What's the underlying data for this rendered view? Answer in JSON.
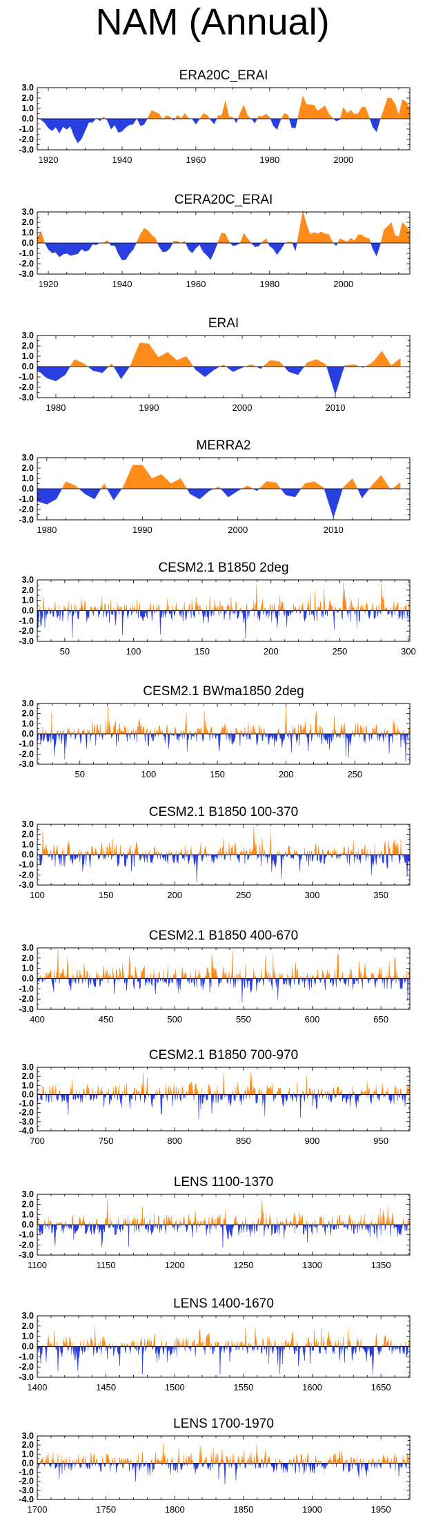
{
  "title": "NAM (Annual)",
  "colors": {
    "positive": "#ff8c1a",
    "negative": "#2a3fe0",
    "frame": "#000000"
  },
  "chart_data": [
    {
      "type": "area",
      "title": "ERA20C_ERAI",
      "xlim": [
        1917,
        2018
      ],
      "ylim": [
        -3.0,
        3.0
      ],
      "yticks": [
        "3.0",
        "2.0",
        "1.0",
        "0.0",
        "-1.0",
        "-2.0",
        "-3.0"
      ],
      "xticks": [
        1920,
        1940,
        1960,
        1980,
        2000
      ],
      "seed": 11,
      "anchors": [
        [
          1917,
          0.3
        ],
        [
          1918,
          0.2
        ],
        [
          1920,
          -0.8
        ],
        [
          1923,
          -1.2
        ],
        [
          1926,
          -0.6
        ],
        [
          1928,
          -2.2
        ],
        [
          1931,
          -0.5
        ],
        [
          1935,
          0.1
        ],
        [
          1938,
          -0.9
        ],
        [
          1940,
          -1.2
        ],
        [
          1943,
          -0.4
        ],
        [
          1946,
          -0.6
        ],
        [
          1948,
          1.4
        ],
        [
          1950,
          0.3
        ],
        [
          1954,
          -0.2
        ],
        [
          1957,
          0.4
        ],
        [
          1960,
          -0.5
        ],
        [
          1963,
          0.3
        ],
        [
          1965,
          -0.8
        ],
        [
          1968,
          1.5
        ],
        [
          1970,
          -0.3
        ],
        [
          1973,
          1.0
        ],
        [
          1976,
          -0.4
        ],
        [
          1979,
          0.2
        ],
        [
          1982,
          -0.8
        ],
        [
          1985,
          0.4
        ],
        [
          1987,
          -0.9
        ],
        [
          1989,
          2.6
        ],
        [
          1991,
          1.3
        ],
        [
          1993,
          0.7
        ],
        [
          1995,
          1.1
        ],
        [
          1997,
          -0.3
        ],
        [
          2000,
          0.6
        ],
        [
          2003,
          0.5
        ],
        [
          2006,
          0.9
        ],
        [
          2009,
          -1.6
        ],
        [
          2011,
          1.0
        ],
        [
          2013,
          1.9
        ],
        [
          2015,
          0.3
        ],
        [
          2016,
          2.1
        ],
        [
          2018,
          1.1
        ]
      ]
    },
    {
      "type": "area",
      "title": "CERA20C_ERAI",
      "xlim": [
        1917,
        2018
      ],
      "ylim": [
        -3.0,
        3.0
      ],
      "yticks": [
        "3.0",
        "2.0",
        "1.0",
        "0.0",
        "-1.0",
        "-2.0",
        "-3.0"
      ],
      "xticks": [
        1920,
        1940,
        1960,
        1980,
        2000
      ],
      "seed": 23,
      "anchors": [
        [
          1917,
          0.4
        ],
        [
          1918,
          1.2
        ],
        [
          1920,
          -0.6
        ],
        [
          1923,
          -1.2
        ],
        [
          1926,
          -0.8
        ],
        [
          1929,
          -1.0
        ],
        [
          1932,
          -0.4
        ],
        [
          1935,
          0.3
        ],
        [
          1938,
          -0.6
        ],
        [
          1940,
          -1.8
        ],
        [
          1943,
          -0.5
        ],
        [
          1946,
          1.4
        ],
        [
          1949,
          0.3
        ],
        [
          1952,
          -0.5
        ],
        [
          1955,
          0.6
        ],
        [
          1958,
          -0.8
        ],
        [
          1961,
          -0.3
        ],
        [
          1964,
          -1.6
        ],
        [
          1967,
          1.0
        ],
        [
          1970,
          -0.4
        ],
        [
          1973,
          1.0
        ],
        [
          1976,
          -0.5
        ],
        [
          1979,
          0.2
        ],
        [
          1982,
          -0.9
        ],
        [
          1985,
          0.5
        ],
        [
          1987,
          -0.6
        ],
        [
          1989,
          2.9
        ],
        [
          1991,
          1.3
        ],
        [
          1993,
          0.8
        ],
        [
          1995,
          1.0
        ],
        [
          1997,
          -0.3
        ],
        [
          2000,
          0.5
        ],
        [
          2003,
          0.6
        ],
        [
          2006,
          0.8
        ],
        [
          2009,
          -1.5
        ],
        [
          2011,
          1.2
        ],
        [
          2013,
          1.7
        ],
        [
          2015,
          0.3
        ],
        [
          2016,
          1.9
        ],
        [
          2018,
          1.0
        ]
      ]
    },
    {
      "type": "area",
      "title": "ERAI",
      "xlim": [
        1978,
        2018
      ],
      "ylim": [
        -3.0,
        3.0
      ],
      "yticks": [
        "3.0",
        "2.0",
        "1.0",
        "0.0",
        "-1.0",
        "-2.0",
        "-3.0"
      ],
      "xticks": [
        1980,
        1990,
        2000,
        2010
      ],
      "seed": 0,
      "anchors": [
        [
          1978,
          -0.3
        ],
        [
          1979,
          -1.1
        ],
        [
          1980,
          -1.4
        ],
        [
          1981,
          -0.8
        ],
        [
          1982,
          0.7
        ],
        [
          1983,
          0.3
        ],
        [
          1984,
          -0.4
        ],
        [
          1985,
          -0.6
        ],
        [
          1986,
          0.3
        ],
        [
          1987,
          -1.2
        ],
        [
          1988,
          0.1
        ],
        [
          1989,
          2.3
        ],
        [
          1990,
          2.2
        ],
        [
          1991,
          0.9
        ],
        [
          1992,
          1.4
        ],
        [
          1993,
          0.6
        ],
        [
          1994,
          1.0
        ],
        [
          1995,
          -0.3
        ],
        [
          1996,
          -1.0
        ],
        [
          1997,
          -0.3
        ],
        [
          1998,
          0.2
        ],
        [
          1999,
          -0.5
        ],
        [
          2000,
          -0.1
        ],
        [
          2001,
          0.2
        ],
        [
          2002,
          -0.2
        ],
        [
          2003,
          0.6
        ],
        [
          2004,
          0.5
        ],
        [
          2005,
          -0.5
        ],
        [
          2006,
          -0.8
        ],
        [
          2007,
          0.4
        ],
        [
          2008,
          0.7
        ],
        [
          2009,
          0.2
        ],
        [
          2010,
          -2.7
        ],
        [
          2011,
          0.1
        ],
        [
          2012,
          0.2
        ],
        [
          2013,
          -0.1
        ],
        [
          2014,
          0.4
        ],
        [
          2015,
          1.5
        ],
        [
          2016,
          0.1
        ],
        [
          2017,
          0.8
        ]
      ]
    },
    {
      "type": "area",
      "title": "MERRA2",
      "xlim": [
        1979,
        2018
      ],
      "ylim": [
        -3.0,
        3.0
      ],
      "yticks": [
        "3.0",
        "2.0",
        "1.0",
        "0.0",
        "-1.0",
        "-2.0",
        "-3.0"
      ],
      "xticks": [
        1980,
        1990,
        2000,
        2010
      ],
      "seed": 0,
      "anchors": [
        [
          1979,
          -1.2
        ],
        [
          1980,
          -1.5
        ],
        [
          1981,
          -1.0
        ],
        [
          1982,
          0.7
        ],
        [
          1983,
          0.3
        ],
        [
          1984,
          -0.5
        ],
        [
          1985,
          -1.0
        ],
        [
          1986,
          0.5
        ],
        [
          1987,
          -1.1
        ],
        [
          1988,
          0.2
        ],
        [
          1989,
          2.3
        ],
        [
          1990,
          2.3
        ],
        [
          1991,
          1.0
        ],
        [
          1992,
          1.4
        ],
        [
          1993,
          0.5
        ],
        [
          1994,
          1.0
        ],
        [
          1995,
          -0.5
        ],
        [
          1996,
          -1.0
        ],
        [
          1997,
          -0.2
        ],
        [
          1998,
          0.2
        ],
        [
          1999,
          -0.8
        ],
        [
          2000,
          -0.2
        ],
        [
          2001,
          0.3
        ],
        [
          2002,
          -0.2
        ],
        [
          2003,
          0.7
        ],
        [
          2004,
          0.6
        ],
        [
          2005,
          -0.6
        ],
        [
          2006,
          -0.8
        ],
        [
          2007,
          0.5
        ],
        [
          2008,
          0.7
        ],
        [
          2009,
          0.1
        ],
        [
          2010,
          -2.8
        ],
        [
          2011,
          0.1
        ],
        [
          2012,
          1.0
        ],
        [
          2013,
          -0.9
        ],
        [
          2014,
          0.3
        ],
        [
          2015,
          1.3
        ],
        [
          2016,
          -0.1
        ],
        [
          2017,
          0.6
        ]
      ]
    },
    {
      "type": "area",
      "title": "CESM2.1 B1850 2deg",
      "xlim": [
        30,
        301
      ],
      "ylim": [
        -3.0,
        3.0
      ],
      "yticks": [
        "3.0",
        "2.0",
        "1.0",
        "0.0",
        "-1.0",
        "-2.0",
        "-3.0"
      ],
      "xticks": [
        50,
        100,
        150,
        200,
        250,
        300
      ],
      "seed": 101,
      "anchors": []
    },
    {
      "type": "area",
      "title": "CESM2.1 BWma1850 2deg",
      "xlim": [
        19,
        290
      ],
      "ylim": [
        -3.0,
        3.0
      ],
      "yticks": [
        "3.0",
        "2.0",
        "1.0",
        "0.0",
        "-1.0",
        "-2.0",
        "-3.0"
      ],
      "xticks": [
        50,
        100,
        150,
        200,
        250
      ],
      "seed": 202,
      "anchors": []
    },
    {
      "type": "area",
      "title": "CESM2.1 B1850 100-370",
      "xlim": [
        100,
        371
      ],
      "ylim": [
        -3.0,
        3.0
      ],
      "yticks": [
        "3.0",
        "2.0",
        "1.0",
        "0.0",
        "-1.0",
        "-2.0",
        "-3.0"
      ],
      "xticks": [
        100,
        150,
        200,
        250,
        300,
        350
      ],
      "seed": 303,
      "anchors": []
    },
    {
      "type": "area",
      "title": "CESM2.1 B1850 400-670",
      "xlim": [
        400,
        671
      ],
      "ylim": [
        -3.0,
        3.0
      ],
      "yticks": [
        "3.0",
        "2.0",
        "1.0",
        "0.0",
        "-1.0",
        "-2.0",
        "-3.0"
      ],
      "xticks": [
        400,
        450,
        500,
        550,
        600,
        650
      ],
      "seed": 404,
      "anchors": []
    },
    {
      "type": "area",
      "title": "CESM2.1 B1850 700-970",
      "xlim": [
        700,
        971
      ],
      "ylim": [
        -4.0,
        3.0
      ],
      "yticks": [
        "3.0",
        "2.0",
        "1.0",
        "0.0",
        "-1.0",
        "-2.0",
        "-3.0",
        "-4.0"
      ],
      "xticks": [
        700,
        750,
        800,
        850,
        900,
        950
      ],
      "seed": 505,
      "anchors": []
    },
    {
      "type": "area",
      "title": "LENS 1100-1370",
      "xlim": [
        1100,
        1371
      ],
      "ylim": [
        -3.0,
        3.0
      ],
      "yticks": [
        "3.0",
        "2.0",
        "1.0",
        "0.0",
        "-1.0",
        "-2.0",
        "-3.0"
      ],
      "xticks": [
        1100,
        1150,
        1200,
        1250,
        1300,
        1350
      ],
      "seed": 606,
      "anchors": []
    },
    {
      "type": "area",
      "title": "LENS 1400-1670",
      "xlim": [
        1400,
        1671
      ],
      "ylim": [
        -3.0,
        3.0
      ],
      "yticks": [
        "3.0",
        "2.0",
        "1.0",
        "0.0",
        "-1.0",
        "-2.0",
        "-3.0"
      ],
      "xticks": [
        1400,
        1450,
        1500,
        1550,
        1600,
        1650
      ],
      "seed": 707,
      "anchors": []
    },
    {
      "type": "area",
      "title": "LENS 1700-1970",
      "xlim": [
        1700,
        1971
      ],
      "ylim": [
        -4.0,
        3.0
      ],
      "yticks": [
        "3.0",
        "2.0",
        "1.0",
        "0.0",
        "-1.0",
        "-2.0",
        "-3.0",
        "-4.0"
      ],
      "xticks": [
        1700,
        1750,
        1800,
        1850,
        1900,
        1950
      ],
      "seed": 808,
      "anchors": []
    }
  ]
}
